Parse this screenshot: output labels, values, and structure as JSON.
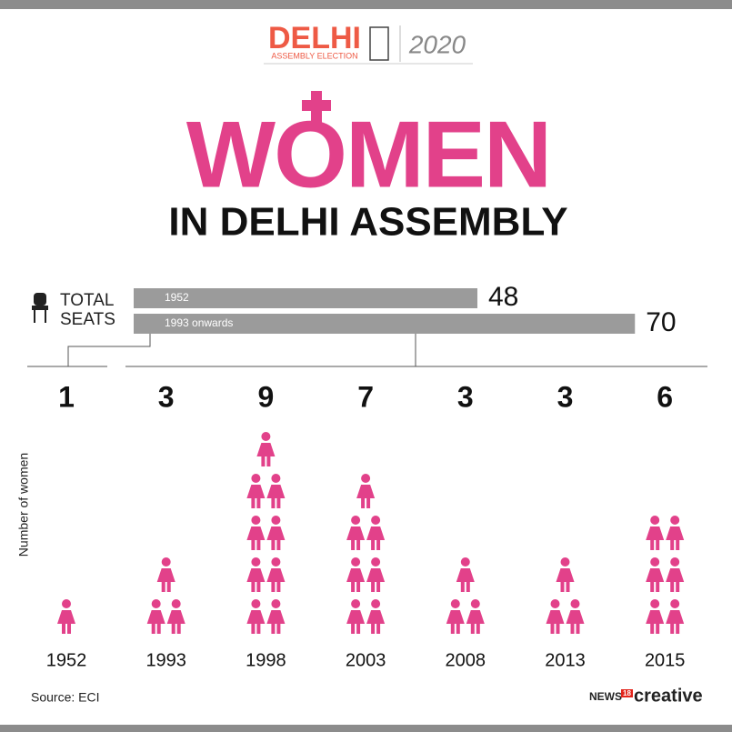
{
  "header": {
    "brand": "DELHI",
    "subtitle": "ASSEMBLY ELECTION",
    "year": "2020"
  },
  "chart_data": {
    "type": "pictogram",
    "title": "WOMEN",
    "subtitle": "IN DELHI ASSEMBLY",
    "total_seats_label": [
      "TOTAL",
      "SEATS"
    ],
    "total_seats": {
      "categories": [
        "1952",
        "1993 onwards"
      ],
      "values": [
        48,
        70
      ],
      "color": "#9b9b9b"
    },
    "y_label": "Number of women",
    "categories": [
      "1952",
      "1993",
      "1998",
      "2003",
      "2008",
      "2013",
      "2015"
    ],
    "values": [
      1,
      3,
      9,
      7,
      3,
      3,
      6
    ],
    "color": "#e2418a"
  },
  "source": "Source: ECI",
  "logo": {
    "news": "NEWS",
    "number": "18",
    "creative": "creative"
  }
}
